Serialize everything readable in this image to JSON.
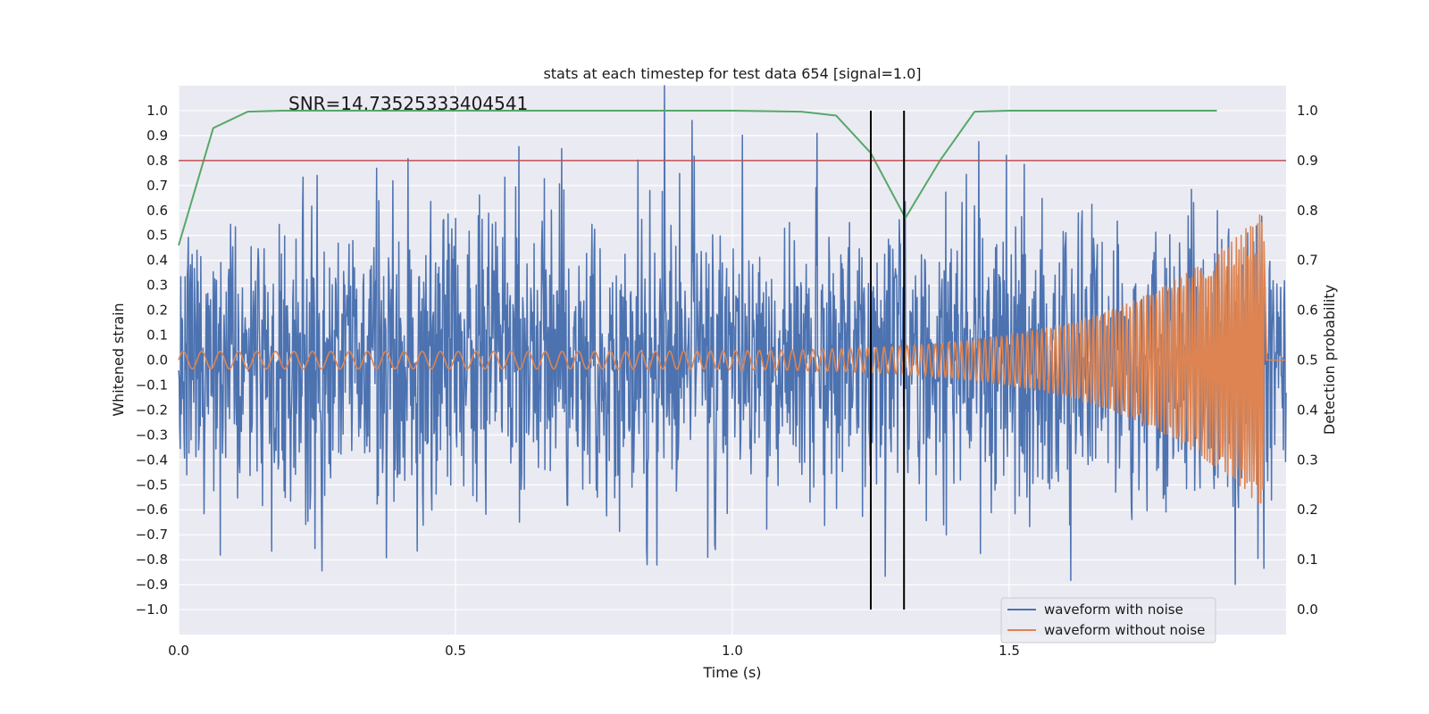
{
  "chart_data": {
    "type": "line",
    "title": "stats at each timestep for test data 654 [signal=1.0]",
    "annotation": "SNR=14.73525333404541",
    "xlabel": "Time (s)",
    "ylabel": "Whitened strain",
    "y2label": "Detection probability",
    "xlim": [
      0.0,
      2.0
    ],
    "ylim": [
      -1.1,
      1.1
    ],
    "y2lim": [
      -0.05,
      1.05
    ],
    "xticks": [
      0.0,
      0.5,
      1.0,
      1.5
    ],
    "xtick_labels": [
      "0.0",
      "0.5",
      "1.0",
      "1.5"
    ],
    "yticks": [
      -1.0,
      -0.9,
      -0.8,
      -0.7,
      -0.6,
      -0.5,
      -0.4,
      -0.3,
      -0.2,
      -0.1,
      0.0,
      0.1,
      0.2,
      0.3,
      0.4,
      0.5,
      0.6,
      0.7,
      0.8,
      0.9,
      1.0
    ],
    "ytick_labels": [
      "−1.0",
      "−0.9",
      "−0.8",
      "−0.7",
      "−0.6",
      "−0.5",
      "−0.4",
      "−0.3",
      "−0.2",
      "−0.1",
      "0.0",
      "0.1",
      "0.2",
      "0.3",
      "0.4",
      "0.5",
      "0.6",
      "0.7",
      "0.8",
      "0.9",
      "1.0"
    ],
    "y2ticks": [
      0.0,
      0.1,
      0.2,
      0.3,
      0.4,
      0.5,
      0.6,
      0.7,
      0.8,
      0.9,
      1.0
    ],
    "y2tick_labels": [
      "0.0",
      "0.1",
      "0.2",
      "0.3",
      "0.4",
      "0.5",
      "0.6",
      "0.7",
      "0.8",
      "0.9",
      "1.0"
    ],
    "threshold_line": {
      "axis": "y2",
      "value": 0.9,
      "color": "#c44e52"
    },
    "vertical_lines": [
      {
        "x": 1.25,
        "color": "#000000"
      },
      {
        "x": 1.31,
        "color": "#000000"
      }
    ],
    "legend": {
      "placement": "bottom-right",
      "entries": [
        "waveform with noise",
        "waveform without noise"
      ]
    },
    "series": [
      {
        "name": "waveform with noise",
        "axis": "y",
        "color": "#4c72b0",
        "generator": "noise",
        "samples": 2048,
        "x_range": [
          0.0,
          2.0
        ],
        "amplitude": 0.3,
        "seed": 654
      },
      {
        "name": "waveform without noise",
        "axis": "y",
        "color": "#dd8452",
        "generator": "chirp",
        "samples": 2048,
        "x_range": [
          0.0,
          1.96
        ],
        "f_start": 30,
        "f_end": 250,
        "amp_start": 0.035,
        "amp_end": 0.6,
        "merger_time": 1.96
      },
      {
        "name": "detection probability",
        "axis": "y2",
        "color": "#55a868",
        "x": [
          0.0,
          0.0625,
          0.125,
          0.1875,
          0.25,
          0.5,
          0.75,
          1.0,
          1.125,
          1.1875,
          1.25,
          1.3125,
          1.375,
          1.4375,
          1.5,
          1.75,
          1.875
        ],
        "values": [
          0.73,
          0.965,
          0.998,
          1.0,
          1.0,
          1.0,
          1.0,
          1.0,
          0.998,
          0.99,
          0.915,
          0.785,
          0.9,
          0.998,
          1.0,
          1.0,
          1.0
        ]
      }
    ],
    "colors": {
      "plot_background": "#eaeaf2",
      "grid": "#ffffff",
      "legend_border": "#cccccc"
    }
  }
}
